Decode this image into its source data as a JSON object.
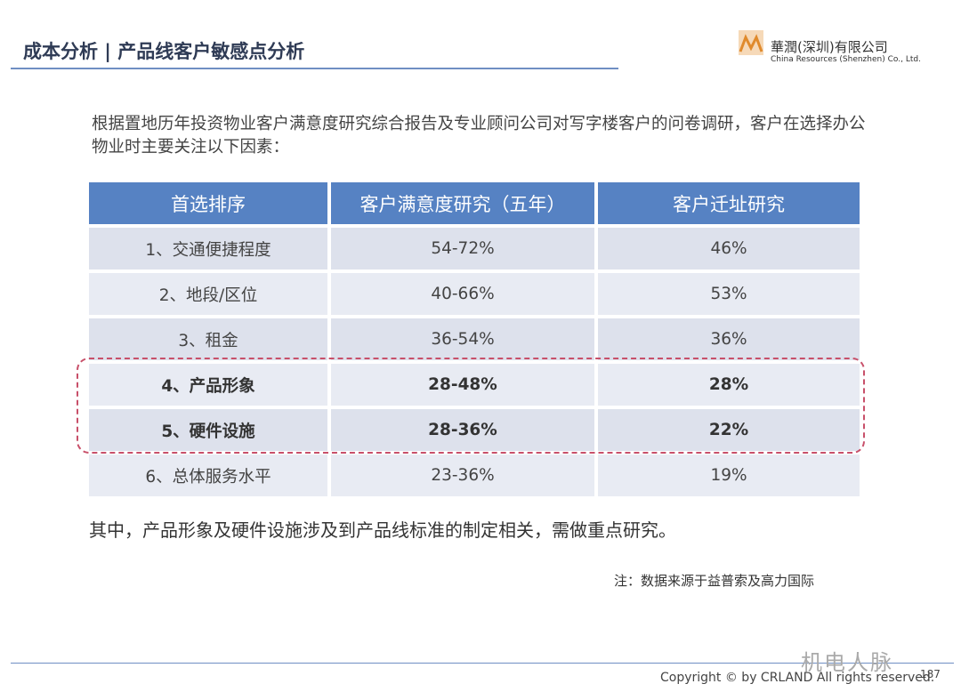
{
  "header": {
    "title": "成本分析 | 产品线客户敏感点分析",
    "logo": {
      "name": "華潤(深圳)有限公司",
      "english": "China Resources (Shenzhen) Co., Ltd."
    }
  },
  "intro": "根据置地历年投资物业客户满意度研究综合报告及专业顾问公司对写字楼客户的问卷调研，客户在选择办公物业时主要关注以下因素：",
  "table": {
    "columns": [
      "首选排序",
      "客户满意度研究（五年）",
      "客户迁址研究"
    ],
    "rows": [
      [
        "1、交通便捷程度",
        "54-72%",
        "46%"
      ],
      [
        "2、地段/区位",
        "40-66%",
        "53%"
      ],
      [
        "3、租金",
        "36-54%",
        "36%"
      ],
      [
        "4、产品形象",
        "28-48%",
        "28%"
      ],
      [
        "5、硬件设施",
        "28-36%",
        "22%"
      ],
      [
        "6、总体服务水平",
        "23-36%",
        "19%"
      ]
    ]
  },
  "conclusion": "其中，产品形象及硬件设施涉及到产品线标准的制定相关，需做重点研究。",
  "note": "注：数据来源于益普索及高力国际",
  "watermark": "机电人脉",
  "footer": {
    "copyright": "Copyright © by CRLAND All rights reserved.",
    "page_number": "187"
  }
}
